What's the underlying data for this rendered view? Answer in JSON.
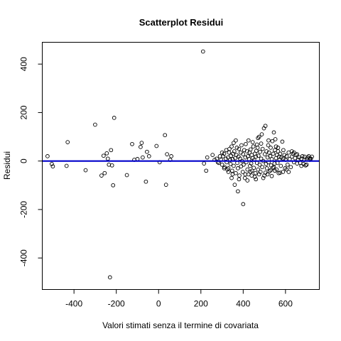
{
  "chart_data": {
    "type": "scatter",
    "title": "Scatterplot Residui",
    "xlabel": "Valori stimati senza il termine di covariata",
    "ylabel": "Residui",
    "xlim": [
      -550,
      760
    ],
    "ylim": [
      -530,
      490
    ],
    "x_ticks": [
      -400,
      -200,
      0,
      200,
      400,
      600
    ],
    "y_ticks": [
      -400,
      -200,
      0,
      200,
      400
    ],
    "x_tick_labels": [
      "-400",
      "-200",
      "0",
      "200",
      "400",
      "600"
    ],
    "y_tick_labels": [
      "-400",
      "-200",
      "0",
      "200",
      "400"
    ],
    "grid": false,
    "legend": "none",
    "point_color": "#000000",
    "reference_line": {
      "y": 0,
      "color": "#0000cc"
    },
    "points": [
      [
        -525,
        20
      ],
      [
        -505,
        -12
      ],
      [
        -500,
        -22
      ],
      [
        -430,
        78
      ],
      [
        -435,
        -20
      ],
      [
        -345,
        -38
      ],
      [
        -300,
        150
      ],
      [
        -270,
        -60
      ],
      [
        -255,
        -50
      ],
      [
        -260,
        22
      ],
      [
        -245,
        32
      ],
      [
        -240,
        10
      ],
      [
        -235,
        -15
      ],
      [
        -230,
        -480
      ],
      [
        -225,
        45
      ],
      [
        -220,
        -18
      ],
      [
        -215,
        -100
      ],
      [
        -210,
        178
      ],
      [
        -150,
        -58
      ],
      [
        -125,
        70
      ],
      [
        -115,
        5
      ],
      [
        -100,
        8
      ],
      [
        -85,
        58
      ],
      [
        -80,
        75
      ],
      [
        -75,
        15
      ],
      [
        -60,
        -85
      ],
      [
        -55,
        38
      ],
      [
        -45,
        20
      ],
      [
        -10,
        62
      ],
      [
        5,
        -5
      ],
      [
        30,
        107
      ],
      [
        35,
        -98
      ],
      [
        40,
        28
      ],
      [
        55,
        5
      ],
      [
        60,
        20
      ],
      [
        210,
        452
      ],
      [
        215,
        -10
      ],
      [
        225,
        -40
      ],
      [
        230,
        15
      ],
      [
        255,
        25
      ],
      [
        265,
        5
      ],
      [
        275,
        10
      ],
      [
        285,
        -8
      ],
      [
        295,
        5
      ],
      [
        300,
        -15
      ],
      [
        305,
        20
      ],
      [
        310,
        30
      ],
      [
        312,
        -25
      ],
      [
        318,
        10
      ],
      [
        320,
        45
      ],
      [
        322,
        -5
      ],
      [
        328,
        15
      ],
      [
        330,
        -30
      ],
      [
        333,
        35
      ],
      [
        338,
        5
      ],
      [
        340,
        -12
      ],
      [
        342,
        22
      ],
      [
        345,
        60
      ],
      [
        348,
        -40
      ],
      [
        350,
        8
      ],
      [
        352,
        30
      ],
      [
        355,
        -20
      ],
      [
        358,
        40
      ],
      [
        360,
        -98
      ],
      [
        362,
        12
      ],
      [
        365,
        -50
      ],
      [
        368,
        25
      ],
      [
        370,
        55
      ],
      [
        372,
        -8
      ],
      [
        375,
        -30
      ],
      [
        378,
        18
      ],
      [
        380,
        50
      ],
      [
        382,
        -60
      ],
      [
        385,
        10
      ],
      [
        388,
        35
      ],
      [
        390,
        -22
      ],
      [
        392,
        65
      ],
      [
        395,
        0
      ],
      [
        398,
        -45
      ],
      [
        400,
        28
      ],
      [
        402,
        -15
      ],
      [
        405,
        45
      ],
      [
        408,
        -70
      ],
      [
        410,
        15
      ],
      [
        412,
        70
      ],
      [
        415,
        -5
      ],
      [
        418,
        40
      ],
      [
        420,
        -35
      ],
      [
        422,
        20
      ],
      [
        425,
        -55
      ],
      [
        428,
        8
      ],
      [
        430,
        35
      ],
      [
        432,
        -20
      ],
      [
        435,
        48
      ],
      [
        438,
        -10
      ],
      [
        440,
        25
      ],
      [
        442,
        -40
      ],
      [
        445,
        12
      ],
      [
        448,
        60
      ],
      [
        450,
        -28
      ],
      [
        452,
        5
      ],
      [
        455,
        30
      ],
      [
        458,
        -50
      ],
      [
        460,
        18
      ],
      [
        462,
        42
      ],
      [
        465,
        -8
      ],
      [
        468,
        55
      ],
      [
        470,
        -35
      ],
      [
        472,
        22
      ],
      [
        475,
        100
      ],
      [
        478,
        -15
      ],
      [
        480,
        38
      ],
      [
        482,
        -45
      ],
      [
        485,
        10
      ],
      [
        488,
        110
      ],
      [
        490,
        -25
      ],
      [
        492,
        50
      ],
      [
        495,
        0
      ],
      [
        498,
        135
      ],
      [
        500,
        -60
      ],
      [
        502,
        28
      ],
      [
        505,
        145
      ],
      [
        508,
        -12
      ],
      [
        510,
        40
      ],
      [
        512,
        -30
      ],
      [
        515,
        15
      ],
      [
        518,
        65
      ],
      [
        520,
        -5
      ],
      [
        522,
        35
      ],
      [
        525,
        -42
      ],
      [
        528,
        20
      ],
      [
        530,
        55
      ],
      [
        532,
        -18
      ],
      [
        535,
        8
      ],
      [
        538,
        82
      ],
      [
        540,
        -28
      ],
      [
        542,
        30
      ],
      [
        545,
        118
      ],
      [
        548,
        -10
      ],
      [
        550,
        45
      ],
      [
        552,
        90
      ],
      [
        555,
        12
      ],
      [
        558,
        -35
      ],
      [
        560,
        25
      ],
      [
        562,
        -8
      ],
      [
        565,
        40
      ],
      [
        568,
        -50
      ],
      [
        570,
        18
      ],
      [
        572,
        5
      ],
      [
        575,
        30
      ],
      [
        578,
        -20
      ],
      [
        580,
        15
      ],
      [
        585,
        80
      ],
      [
        588,
        -45
      ],
      [
        590,
        10
      ],
      [
        595,
        25
      ],
      [
        598,
        -30
      ],
      [
        600,
        5
      ],
      [
        605,
        20
      ],
      [
        610,
        -15
      ],
      [
        615,
        35
      ],
      [
        620,
        8
      ],
      [
        625,
        -25
      ],
      [
        630,
        18
      ],
      [
        635,
        30
      ],
      [
        640,
        -5
      ],
      [
        645,
        12
      ],
      [
        650,
        25
      ],
      [
        655,
        -10
      ],
      [
        660,
        5
      ],
      [
        665,
        15
      ],
      [
        670,
        -8
      ],
      [
        675,
        10
      ],
      [
        680,
        20
      ],
      [
        685,
        -12
      ],
      [
        690,
        5
      ],
      [
        695,
        -18
      ],
      [
        700,
        8
      ],
      [
        705,
        15
      ],
      [
        710,
        20
      ],
      [
        715,
        12
      ],
      [
        720,
        10
      ],
      [
        725,
        18
      ],
      [
        400,
        -178
      ],
      [
        375,
        -125
      ],
      [
        420,
        -80
      ],
      [
        350,
        -55
      ],
      [
        440,
        -60
      ],
      [
        460,
        -75
      ],
      [
        330,
        -45
      ],
      [
        310,
        -30
      ],
      [
        300,
        35
      ],
      [
        290,
        20
      ],
      [
        280,
        -5
      ],
      [
        470,
        95
      ],
      [
        495,
        -70
      ],
      [
        515,
        -55
      ],
      [
        530,
        -38
      ],
      [
        545,
        -25
      ],
      [
        555,
        60
      ],
      [
        565,
        55
      ],
      [
        380,
        -75
      ],
      [
        365,
        85
      ],
      [
        355,
        75
      ],
      [
        345,
        -70
      ],
      [
        335,
        50
      ],
      [
        325,
        -35
      ],
      [
        410,
        -55
      ],
      [
        425,
        85
      ],
      [
        435,
        -45
      ],
      [
        445,
        78
      ],
      [
        455,
        -65
      ],
      [
        465,
        68
      ],
      [
        475,
        -55
      ],
      [
        485,
        72
      ],
      [
        505,
        -48
      ],
      [
        520,
        85
      ],
      [
        535,
        -62
      ],
      [
        550,
        -40
      ],
      [
        575,
        -48
      ],
      [
        590,
        45
      ],
      [
        605,
        -35
      ],
      [
        615,
        -45
      ],
      [
        630,
        40
      ],
      [
        640,
        35
      ],
      [
        655,
        28
      ],
      [
        675,
        -20
      ],
      [
        690,
        18
      ],
      [
        700,
        -15
      ],
      [
        715,
        5
      ]
    ]
  }
}
